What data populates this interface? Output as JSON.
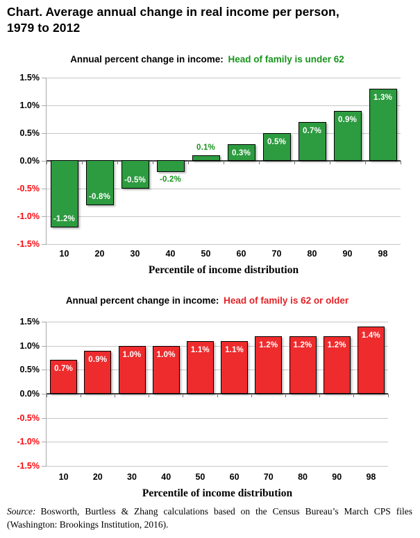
{
  "page": {
    "title": "Chart. Average annual change in real income per person,\n1979 to 2012",
    "source": {
      "prefix": "Source:",
      "text": "Bosworth, Burtless & Zhang calculations based on the Census Bureau’s March CPS files (Washington: Brookings Institution, 2016)."
    }
  },
  "colors": {
    "negative_axis_text": "#fa0a0f",
    "axis_text": "#000000",
    "gridline": "#c6c6c6",
    "zero_line": "#3d3d3d",
    "y_axis_line": "#a9a9a9",
    "green_bar": "#2d9b40",
    "green_text": "#17941c",
    "red_bar": "#ee2b2d",
    "red_text": "#e32227",
    "bar_value_text_inside": "#ffffff"
  },
  "chart_data": [
    {
      "type": "bar",
      "title": "Annual percent change in income:",
      "title_highlight": "Head of family is under 62",
      "highlight_color": "#17941c",
      "bar_color": "#2d9b40",
      "outside_label_color": "#17941c",
      "categories": [
        "10",
        "20",
        "30",
        "40",
        "50",
        "60",
        "70",
        "80",
        "90",
        "98"
      ],
      "values": [
        -1.2,
        -0.8,
        -0.5,
        -0.2,
        0.1,
        0.3,
        0.5,
        0.7,
        0.9,
        1.3
      ],
      "bar_labels": [
        "-1.2%",
        "-0.8%",
        "-0.5%",
        "-0.2%",
        "0.1%",
        "0.3%",
        "0.5%",
        "0.7%",
        "0.9%",
        "1.3%"
      ],
      "xlabel": "Percentile of income distribution",
      "ylim": [
        -1.5,
        1.5
      ],
      "yticks": [
        "1.5%",
        "1.0%",
        "0.5%",
        "0.0%",
        "-0.5%",
        "-1.0%",
        "-1.5%"
      ],
      "grid": true,
      "legend": "none"
    },
    {
      "type": "bar",
      "title": "Annual percent change in income:",
      "title_highlight": "Head of family is 62 or older",
      "highlight_color": "#e32227",
      "bar_color": "#ee2b2d",
      "outside_label_color": "#e32227",
      "categories": [
        "10",
        "20",
        "30",
        "40",
        "50",
        "60",
        "70",
        "80",
        "90",
        "98"
      ],
      "values": [
        0.7,
        0.9,
        1.0,
        1.0,
        1.1,
        1.1,
        1.2,
        1.2,
        1.2,
        1.4
      ],
      "bar_labels": [
        "0.7%",
        "0.9%",
        "1.0%",
        "1.0%",
        "1.1%",
        "1.1%",
        "1.2%",
        "1.2%",
        "1.2%",
        "1.4%"
      ],
      "xlabel": "Percentile of income distribution",
      "ylim": [
        -1.5,
        1.5
      ],
      "yticks": [
        "1.5%",
        "1.0%",
        "0.5%",
        "0.0%",
        "-0.5%",
        "-1.0%",
        "-1.5%"
      ],
      "grid": true,
      "legend": "none"
    }
  ]
}
